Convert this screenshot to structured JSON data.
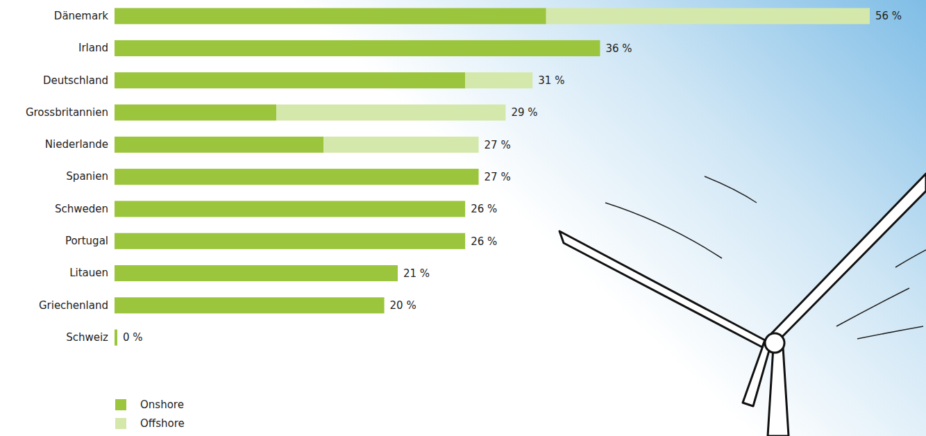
{
  "chart_data": {
    "type": "bar",
    "orientation": "horizontal",
    "stacked": true,
    "categories": [
      "Dänemark",
      "Irland",
      "Deutschland",
      "Grossbritannien",
      "Niederlande",
      "Spanien",
      "Schweden",
      "Portugal",
      "Litauen",
      "Griechenland",
      "Schweiz"
    ],
    "series": [
      {
        "name": "Onshore",
        "color": "#9bc53d",
        "values": [
          32,
          36,
          26,
          12,
          15.5,
          27,
          26,
          26,
          21,
          20,
          0
        ]
      },
      {
        "name": "Offshore",
        "color": "#d5e8ab",
        "values": [
          24,
          0,
          5,
          17,
          11.5,
          0,
          0,
          0,
          0,
          0,
          0
        ]
      }
    ],
    "totals": [
      56,
      36,
      31,
      29,
      27,
      27,
      26,
      26,
      21,
      20,
      0
    ],
    "total_labels": [
      "56 %",
      "36 %",
      "31 %",
      "29 %",
      "27 %",
      "27 %",
      "26 %",
      "26 %",
      "21 %",
      "20 %",
      "0 %"
    ],
    "xlim": [
      0,
      56
    ],
    "xticks": [],
    "tick_labels": "y",
    "grid": false,
    "legend": "bottom-left"
  }
}
